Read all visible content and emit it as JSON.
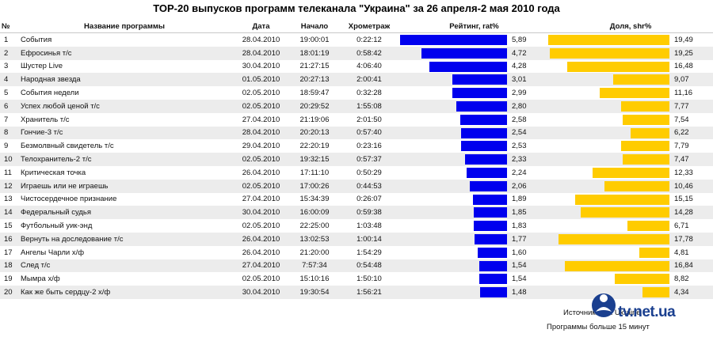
{
  "title": "ТОР-20 выпусков программ телеканала \"Украина\" за 26 апреля-2 мая 2010 года",
  "headers": {
    "num": "№",
    "name": "Название программы",
    "date": "Дата",
    "start": "Начало",
    "duration": "Хрометраж",
    "rating": "Рейтинг, rat%",
    "share": "Доля, shr%"
  },
  "colors": {
    "rating_bar": "#0000ee",
    "share_bar": "#ffcc00",
    "row_alt": "#ececec",
    "logo": "#1a3f8f"
  },
  "chart_data": {
    "type": "table",
    "title": "ТОР-20 выпусков программ телеканала \"Украина\" за 26 апреля-2 мая 2010 года",
    "series": [
      {
        "name": "Рейтинг, rat%",
        "max": 5.89
      },
      {
        "name": "Доля, shr%",
        "max": 19.49
      }
    ],
    "rows": [
      {
        "num": "1",
        "name": "События",
        "date": "28.04.2010",
        "start": "19:00:01",
        "duration": "0:22:12",
        "rating": "5,89",
        "share": "19,49"
      },
      {
        "num": "2",
        "name": "Ефросинья т/с",
        "date": "28.04.2010",
        "start": "18:01:19",
        "duration": "0:58:42",
        "rating": "4,72",
        "share": "19,25"
      },
      {
        "num": "3",
        "name": "Шустер Live",
        "date": "30.04.2010",
        "start": "21:27:15",
        "duration": "4:06:40",
        "rating": "4,28",
        "share": "16,48"
      },
      {
        "num": "4",
        "name": "Народная звезда",
        "date": "01.05.2010",
        "start": "20:27:13",
        "duration": "2:00:41",
        "rating": "3,01",
        "share": "9,07"
      },
      {
        "num": "5",
        "name": "События недели",
        "date": "02.05.2010",
        "start": "18:59:47",
        "duration": "0:32:28",
        "rating": "2,99",
        "share": "11,16"
      },
      {
        "num": "6",
        "name": "Успех любой ценой т/с",
        "date": "02.05.2010",
        "start": "20:29:52",
        "duration": "1:55:08",
        "rating": "2,80",
        "share": "7,77"
      },
      {
        "num": "7",
        "name": "Хранитель т/с",
        "date": "27.04.2010",
        "start": "21:19:06",
        "duration": "2:01:50",
        "rating": "2,58",
        "share": "7,54"
      },
      {
        "num": "8",
        "name": "Гончие-3 т/с",
        "date": "28.04.2010",
        "start": "20:20:13",
        "duration": "0:57:40",
        "rating": "2,54",
        "share": "6,22"
      },
      {
        "num": "9",
        "name": "Безмолвный свидетель т/с",
        "date": "29.04.2010",
        "start": "22:20:19",
        "duration": "0:23:16",
        "rating": "2,53",
        "share": "7,79"
      },
      {
        "num": "10",
        "name": "Телохранитель-2 т/с",
        "date": "02.05.2010",
        "start": "19:32:15",
        "duration": "0:57:37",
        "rating": "2,33",
        "share": "7,47"
      },
      {
        "num": "11",
        "name": "Критическая точка",
        "date": "26.04.2010",
        "start": "17:11:10",
        "duration": "0:50:29",
        "rating": "2,24",
        "share": "12,33"
      },
      {
        "num": "12",
        "name": "Играешь или не играешь",
        "date": "02.05.2010",
        "start": "17:00:26",
        "duration": "0:44:53",
        "rating": "2,06",
        "share": "10,46"
      },
      {
        "num": "13",
        "name": "Чистосердечное признание",
        "date": "27.04.2010",
        "start": "15:34:39",
        "duration": "0:26:07",
        "rating": "1,89",
        "share": "15,15"
      },
      {
        "num": "14",
        "name": "Федеральный судья",
        "date": "30.04.2010",
        "start": "16:00:09",
        "duration": "0:59:38",
        "rating": "1,85",
        "share": "14,28"
      },
      {
        "num": "15",
        "name": "Футбольный уик-энд",
        "date": "02.05.2010",
        "start": "22:25:00",
        "duration": "1:03:48",
        "rating": "1,83",
        "share": "6,71"
      },
      {
        "num": "16",
        "name": "Вернуть на доследование т/с",
        "date": "26.04.2010",
        "start": "13:02:53",
        "duration": "1:00:14",
        "rating": "1,77",
        "share": "17,78"
      },
      {
        "num": "17",
        "name": "Ангелы Чарли х/ф",
        "date": "26.04.2010",
        "start": "21:20:00",
        "duration": "1:54:29",
        "rating": "1,60",
        "share": "4,81"
      },
      {
        "num": "18",
        "name": "След т/с",
        "date": "27.04.2010",
        "start": "7:57:34",
        "duration": "0:54:48",
        "rating": "1,54",
        "share": "16,84"
      },
      {
        "num": "19",
        "name": "Мымра х/ф",
        "date": "02.05.2010",
        "start": "15:10:16",
        "duration": "1:50:10",
        "rating": "1,54",
        "share": "8,82"
      },
      {
        "num": "20",
        "name": "Как же быть сердцу-2 х/ф",
        "date": "30.04.2010",
        "start": "19:30:54",
        "duration": "1:56:21",
        "rating": "1,48",
        "share": "4,34"
      }
    ]
  },
  "footer": {
    "source": "Источник: GfK Ukraine",
    "note": "Программы больше 15 минут"
  },
  "logo": {
    "text": "tv.net.ua",
    "icon": "tv-person-logo-icon"
  }
}
